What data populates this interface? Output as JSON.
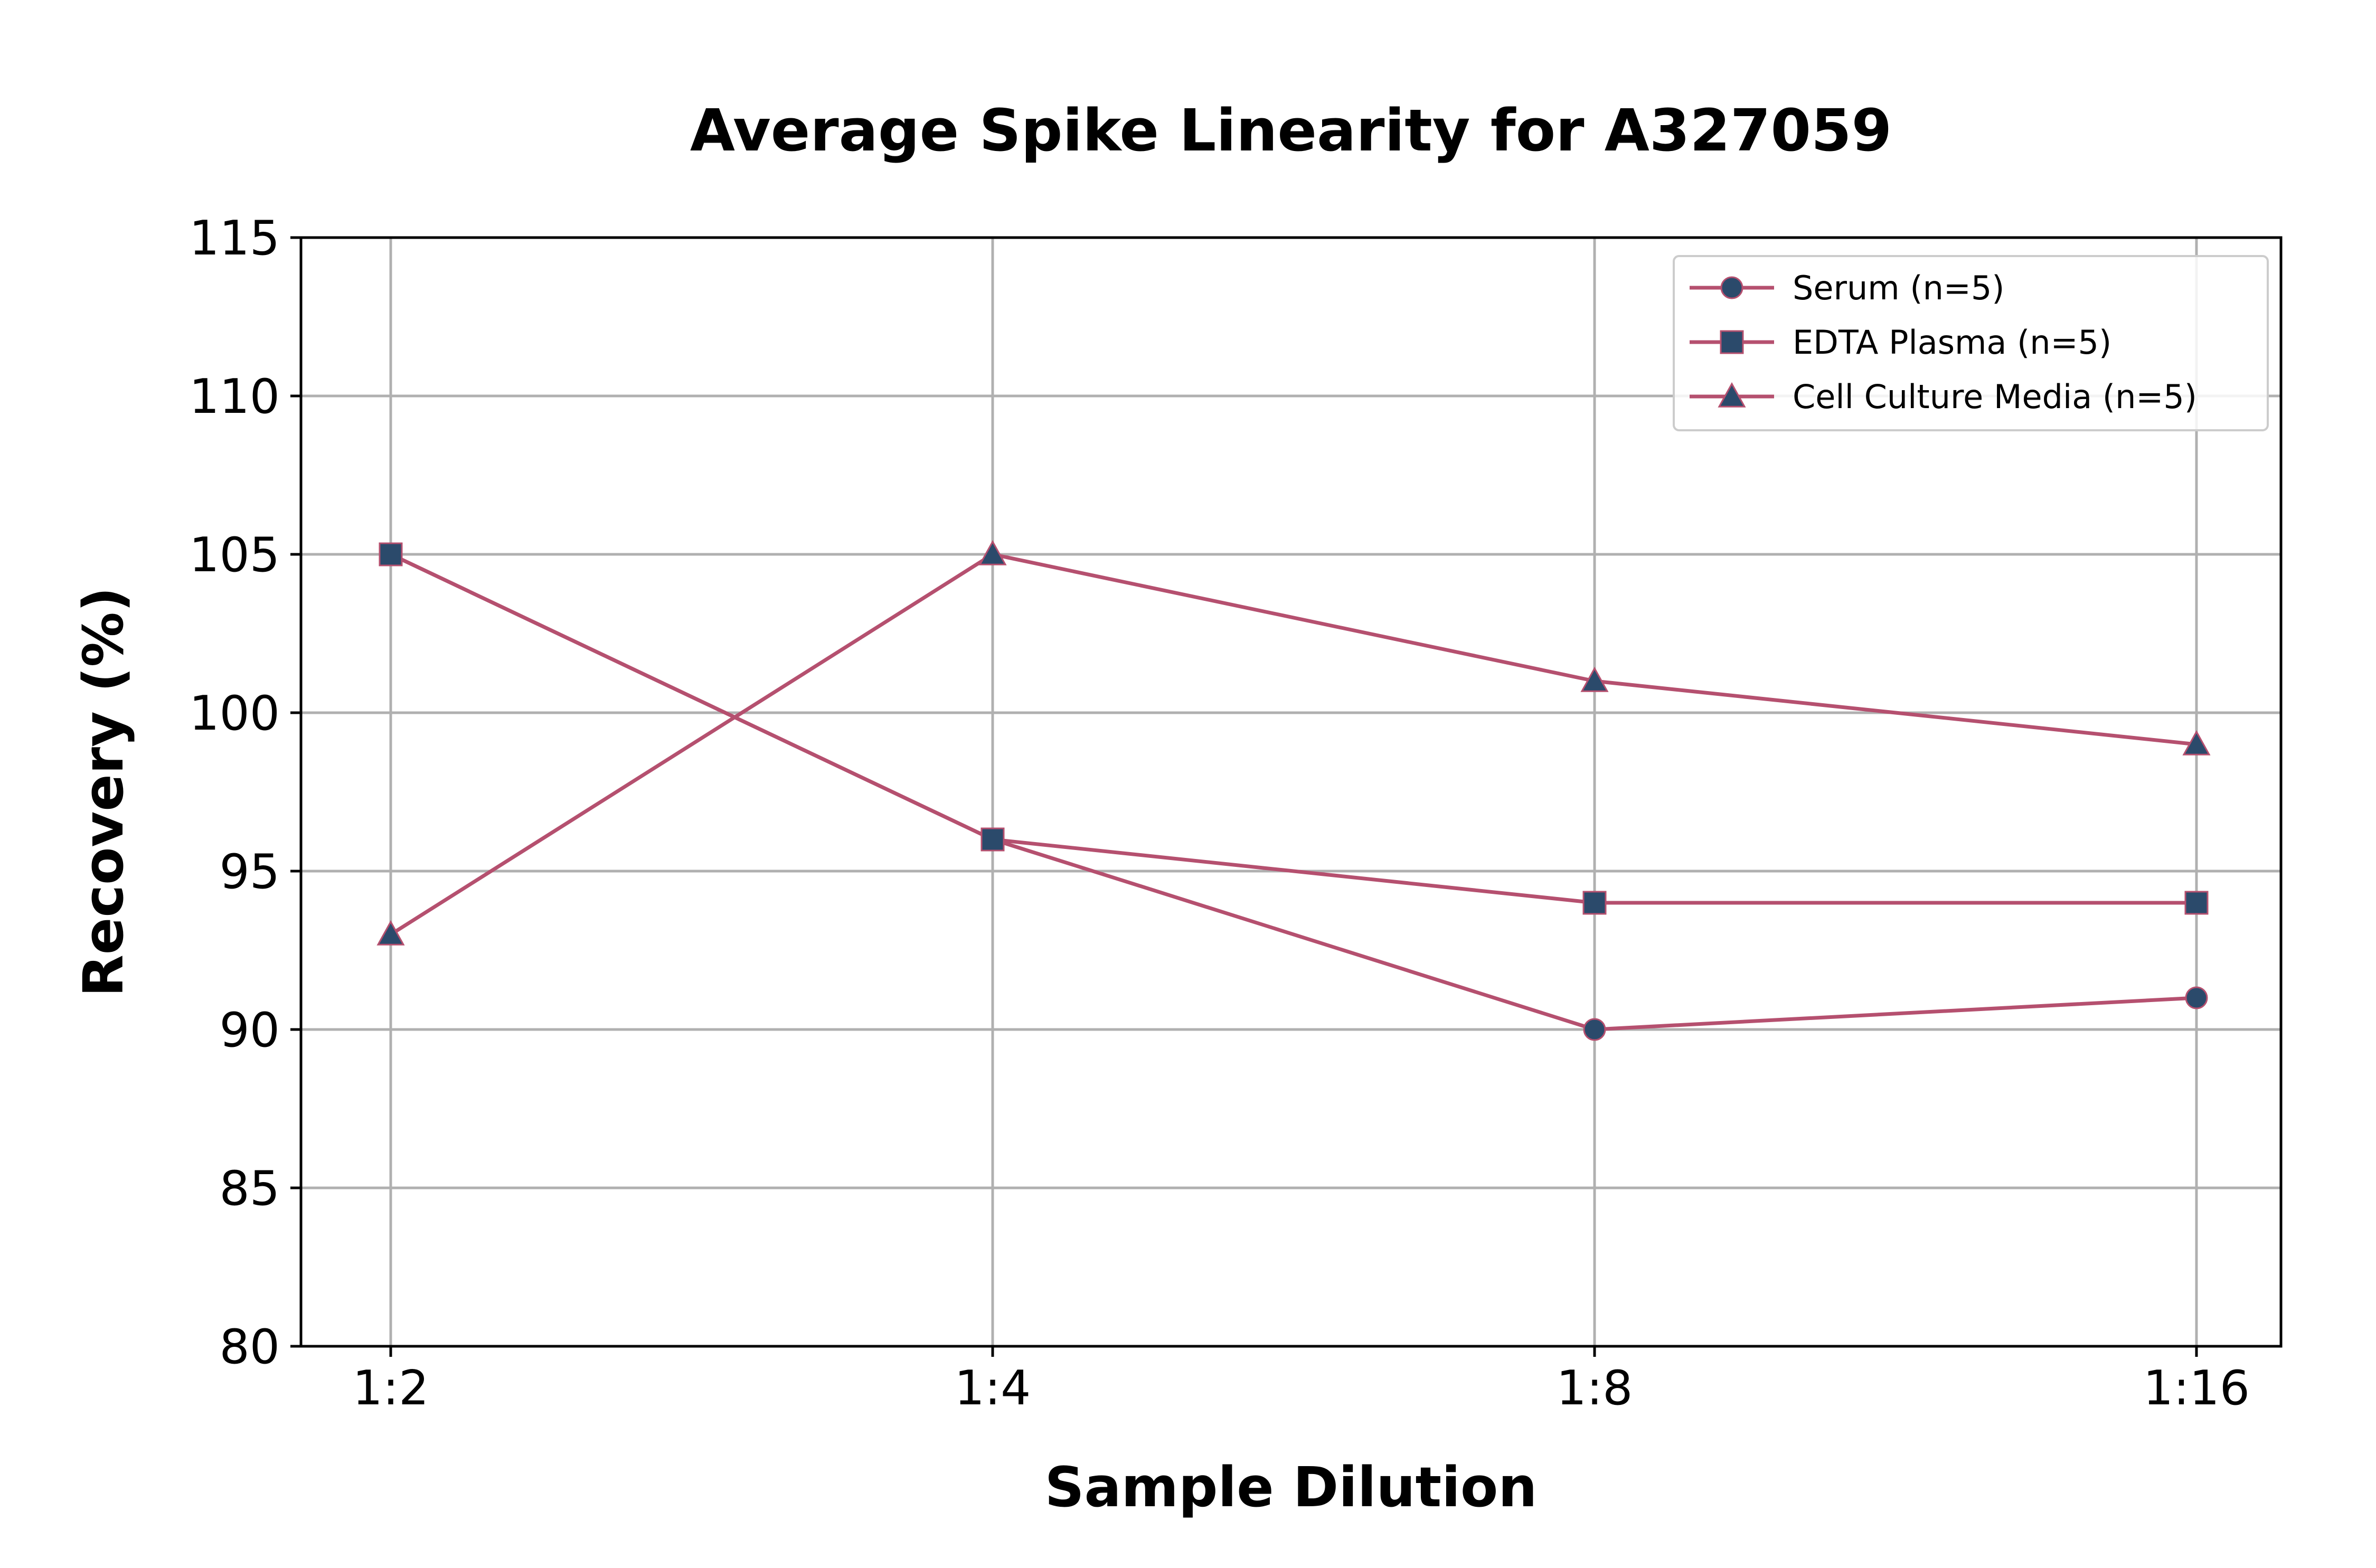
{
  "chart_data": {
    "type": "line",
    "title": "Average Spike Linearity for A327059",
    "xlabel": "Sample Dilution",
    "ylabel": "Recovery (%)",
    "categories": [
      "1:2",
      "1:4",
      "1:8",
      "1:16"
    ],
    "ylim": [
      80,
      115
    ],
    "yticks": [
      80,
      85,
      90,
      95,
      100,
      105,
      110,
      115
    ],
    "grid": true,
    "legend_position": "top-right",
    "line_color": "#b5506f",
    "marker_color": "#2b4a6b",
    "series": [
      {
        "name": "Serum (n=5)",
        "marker": "circle",
        "values": [
          105,
          96,
          90,
          91
        ]
      },
      {
        "name": "EDTA Plasma (n=5)",
        "marker": "square",
        "values": [
          105,
          96,
          94,
          94
        ]
      },
      {
        "name": "Cell Culture Media (n=5)",
        "marker": "triangle",
        "values": [
          93,
          105,
          101,
          99
        ]
      }
    ]
  }
}
